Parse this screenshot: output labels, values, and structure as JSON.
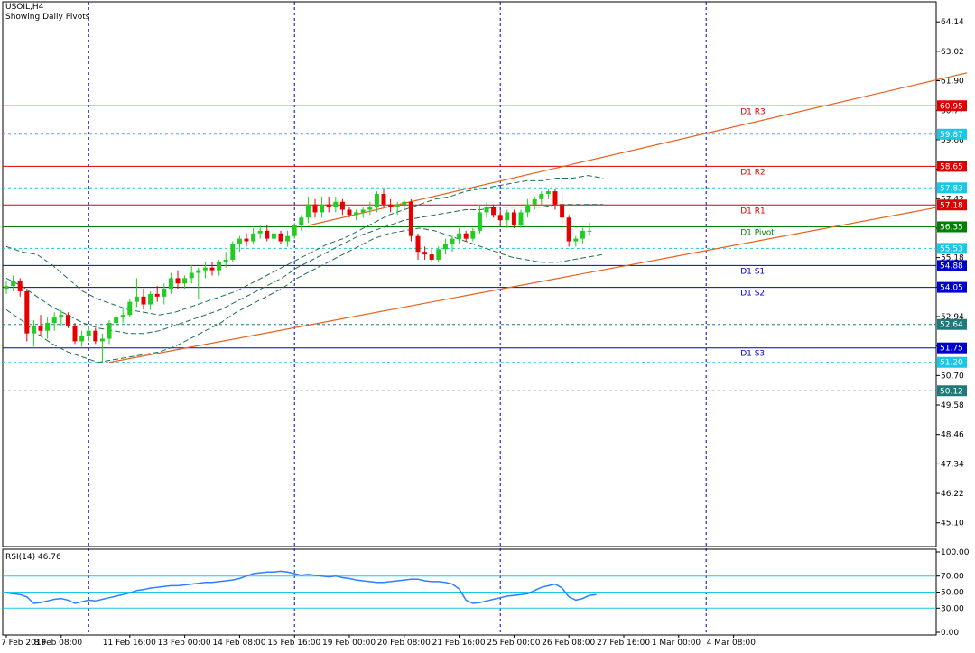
{
  "chart_data": {
    "type": "candlestick",
    "symbol_label": "USOIL,H4",
    "subtitle": "Showing Daily Pivots",
    "price_axis": {
      "min": 44.2,
      "max": 64.9,
      "ticks": [
        "64.14",
        "63.02",
        "61.90",
        "60.77",
        "59.66",
        "58.54",
        "57.42",
        "56.30",
        "55.18",
        "54.06",
        "52.94",
        "51.82",
        "50.70",
        "49.58",
        "48.46",
        "47.34",
        "46.22",
        "45.10"
      ]
    },
    "x_labels": [
      {
        "label": "7 Feb 2019",
        "index": 0
      },
      {
        "label": "8 Feb 08:00",
        "index": 8
      },
      {
        "label": "11 Feb 16:00",
        "index": 18
      },
      {
        "label": "13 Feb 00:00",
        "index": 26
      },
      {
        "label": "14 Feb 08:00",
        "index": 34
      },
      {
        "label": "15 Feb 16:00",
        "index": 42
      },
      {
        "label": "19 Feb 00:00",
        "index": 50
      },
      {
        "label": "20 Feb 08:00",
        "index": 58
      },
      {
        "label": "21 Feb 16:00",
        "index": 66
      },
      {
        "label": "25 Feb 00:00",
        "index": 74
      },
      {
        "label": "26 Feb 08:00",
        "index": 82
      },
      {
        "label": "27 Feb 16:00",
        "index": 90
      },
      {
        "label": "1 Mar 00:00",
        "index": 98
      },
      {
        "label": "4 Mar 08:00",
        "index": 106
      }
    ],
    "day_separators": [
      12,
      42,
      72,
      102
    ],
    "candles": [
      [
        54.0,
        54.3,
        53.8,
        54.1
      ],
      [
        54.1,
        54.5,
        53.9,
        54.3
      ],
      [
        54.3,
        54.4,
        53.7,
        53.9
      ],
      [
        53.9,
        54.0,
        52.0,
        52.3
      ],
      [
        52.3,
        52.8,
        51.8,
        52.6
      ],
      [
        52.6,
        53.0,
        52.2,
        52.4
      ],
      [
        52.4,
        52.9,
        52.1,
        52.7
      ],
      [
        52.7,
        53.1,
        52.4,
        52.9
      ],
      [
        52.9,
        53.2,
        52.6,
        53.0
      ],
      [
        53.0,
        53.1,
        52.5,
        52.6
      ],
      [
        52.6,
        52.7,
        51.9,
        52.0
      ],
      [
        52.0,
        52.4,
        51.8,
        52.2
      ],
      [
        52.2,
        52.6,
        52.0,
        52.4
      ],
      [
        52.4,
        52.5,
        51.9,
        52.0
      ],
      [
        52.0,
        52.3,
        51.2,
        52.1
      ],
      [
        52.1,
        52.8,
        51.9,
        52.7
      ],
      [
        52.7,
        53.0,
        52.5,
        52.9
      ],
      [
        52.9,
        53.3,
        52.7,
        53.0
      ],
      [
        53.0,
        53.6,
        52.9,
        53.5
      ],
      [
        53.5,
        54.4,
        53.3,
        53.7
      ],
      [
        53.7,
        54.0,
        53.2,
        53.4
      ],
      [
        53.4,
        53.9,
        53.2,
        53.8
      ],
      [
        53.8,
        54.1,
        53.5,
        53.7
      ],
      [
        53.7,
        54.2,
        53.4,
        54.0
      ],
      [
        54.0,
        54.6,
        53.8,
        54.4
      ],
      [
        54.4,
        54.7,
        54.0,
        54.2
      ],
      [
        54.2,
        54.5,
        54.0,
        54.4
      ],
      [
        54.4,
        54.9,
        54.2,
        54.6
      ],
      [
        54.6,
        54.8,
        53.6,
        54.7
      ],
      [
        54.7,
        55.0,
        54.4,
        54.8
      ],
      [
        54.8,
        55.0,
        54.5,
        54.7
      ],
      [
        54.7,
        55.1,
        54.5,
        55.0
      ],
      [
        55.0,
        55.4,
        54.8,
        55.1
      ],
      [
        55.1,
        55.8,
        55.0,
        55.7
      ],
      [
        55.7,
        56.0,
        55.4,
        55.9
      ],
      [
        55.9,
        56.1,
        55.6,
        55.8
      ],
      [
        55.8,
        56.3,
        55.7,
        56.1
      ],
      [
        56.1,
        56.4,
        55.9,
        56.2
      ],
      [
        56.2,
        56.4,
        55.8,
        55.9
      ],
      [
        55.9,
        56.2,
        55.7,
        56.1
      ],
      [
        56.1,
        56.2,
        55.7,
        55.8
      ],
      [
        55.8,
        56.2,
        55.6,
        56.0
      ],
      [
        56.0,
        56.5,
        55.9,
        56.4
      ],
      [
        56.4,
        56.8,
        56.2,
        56.7
      ],
      [
        56.7,
        57.5,
        56.5,
        57.2
      ],
      [
        57.2,
        57.4,
        56.7,
        56.9
      ],
      [
        56.9,
        57.5,
        56.7,
        57.2
      ],
      [
        57.2,
        57.5,
        56.9,
        57.1
      ],
      [
        57.1,
        57.5,
        56.9,
        57.3
      ],
      [
        57.3,
        57.4,
        56.8,
        57.0
      ],
      [
        57.0,
        57.1,
        56.7,
        56.8
      ],
      [
        56.8,
        57.0,
        56.6,
        56.9
      ],
      [
        56.9,
        57.1,
        56.7,
        57.0
      ],
      [
        57.0,
        57.3,
        56.8,
        57.1
      ],
      [
        57.1,
        57.7,
        56.9,
        57.6
      ],
      [
        57.6,
        57.8,
        57.1,
        57.2
      ],
      [
        57.2,
        57.4,
        56.9,
        57.1
      ],
      [
        57.1,
        57.3,
        56.8,
        57.2
      ],
      [
        57.2,
        57.4,
        57.0,
        57.3
      ],
      [
        57.3,
        57.4,
        55.8,
        56.0
      ],
      [
        56.0,
        56.1,
        55.1,
        55.4
      ],
      [
        55.4,
        55.6,
        55.1,
        55.3
      ],
      [
        55.3,
        55.5,
        55.0,
        55.1
      ],
      [
        55.1,
        55.6,
        55.0,
        55.5
      ],
      [
        55.5,
        55.9,
        55.3,
        55.7
      ],
      [
        55.7,
        56.0,
        55.4,
        55.9
      ],
      [
        55.9,
        56.3,
        55.7,
        56.1
      ],
      [
        56.1,
        56.2,
        55.8,
        55.9
      ],
      [
        55.9,
        56.3,
        55.8,
        56.2
      ],
      [
        56.2,
        57.2,
        56.1,
        56.9
      ],
      [
        56.9,
        57.3,
        56.7,
        57.1
      ],
      [
        57.1,
        57.2,
        56.7,
        56.8
      ],
      [
        56.8,
        57.0,
        56.4,
        56.6
      ],
      [
        56.6,
        57.0,
        56.3,
        56.9
      ],
      [
        56.9,
        57.0,
        56.3,
        56.4
      ],
      [
        56.4,
        57.0,
        56.3,
        56.9
      ],
      [
        56.9,
        57.4,
        56.7,
        57.2
      ],
      [
        57.2,
        57.5,
        57.0,
        57.4
      ],
      [
        57.4,
        57.7,
        57.2,
        57.6
      ],
      [
        57.6,
        57.8,
        57.4,
        57.7
      ],
      [
        57.7,
        57.8,
        57.0,
        57.2
      ],
      [
        57.2,
        57.6,
        56.4,
        56.7
      ],
      [
        56.7,
        56.8,
        55.6,
        55.8
      ],
      [
        55.8,
        56.0,
        55.6,
        55.9
      ],
      [
        55.9,
        56.3,
        55.7,
        56.2
      ],
      [
        56.2,
        56.5,
        56.0,
        56.2
      ]
    ],
    "pivot_lines": [
      {
        "name": "D1 R3",
        "value": 60.95,
        "value_label": "60.95",
        "color": "#dd0000",
        "style": "solid"
      },
      {
        "name": "",
        "value": 59.87,
        "value_label": "59.87",
        "color": "#19c8e6",
        "style": "dashed"
      },
      {
        "name": "D1 R2",
        "value": 58.65,
        "value_label": "58.65",
        "color": "#dd0000",
        "style": "solid"
      },
      {
        "name": "",
        "value": 57.83,
        "value_label": "57.83",
        "color": "#19c8e6",
        "style": "dashed"
      },
      {
        "name": "D1 R1",
        "value": 57.18,
        "value_label": "57.18",
        "color": "#dd0000",
        "style": "solid"
      },
      {
        "name": "D1 Pivot",
        "value": 56.35,
        "value_label": "56.35",
        "color": "#008000",
        "style": "solid"
      },
      {
        "name": "",
        "value": 55.53,
        "value_label": "55.53",
        "color": "#19c8e6",
        "style": "dashed"
      },
      {
        "name": "D1 S1",
        "value": 54.88,
        "value_label": "54.88",
        "color": "#0000cc",
        "style": "solid"
      },
      {
        "name": "D1 S2",
        "value": 54.05,
        "value_label": "54.05",
        "color": "#0000cc",
        "style": "solid"
      },
      {
        "name": "",
        "value": 52.64,
        "value_label": "52.64",
        "color": "#1e7a7a",
        "style": "dashed"
      },
      {
        "name": "D1 S3",
        "value": 51.75,
        "value_label": "51.75",
        "color": "#0000cc",
        "style": "solid"
      },
      {
        "name": "",
        "value": 51.2,
        "value_label": "51.20",
        "color": "#19c8e6",
        "style": "dashed"
      },
      {
        "name": "",
        "value": 50.12,
        "value_label": "50.12",
        "color": "#1e7a7a",
        "style": "dashed"
      }
    ],
    "channel": {
      "color": "#e8601c",
      "upper": [
        {
          "index": 44,
          "value": 56.4
        },
        {
          "index": 140,
          "value": 62.2
        }
      ],
      "lower": [
        {
          "index": 15,
          "value": 51.2
        },
        {
          "index": 140,
          "value": 57.3
        }
      ]
    },
    "envelope": {
      "color": "#1f6f4f",
      "upper": [
        55.6,
        55.4,
        55.3,
        54.9,
        54.4,
        53.9,
        53.6,
        53.4,
        53.2,
        53.1,
        53.0,
        53.1,
        53.3,
        53.5,
        53.7,
        53.9,
        54.2,
        54.5,
        54.8,
        55.1,
        55.4,
        55.7,
        55.9,
        56.2,
        56.5,
        56.8,
        57.0,
        57.2,
        57.4,
        57.5,
        57.7,
        57.8,
        57.9,
        58.0,
        58.1,
        58.1,
        58.2,
        58.2,
        58.3,
        58.2
      ],
      "middle": [
        54.4,
        54.1,
        53.7,
        53.3,
        53.0,
        52.7,
        52.5,
        52.4,
        52.3,
        52.3,
        52.4,
        52.6,
        52.8,
        53.0,
        53.2,
        53.5,
        53.8,
        54.1,
        54.4,
        54.8,
        55.1,
        55.4,
        55.7,
        56.0,
        56.2,
        56.4,
        56.6,
        56.7,
        56.8,
        56.9,
        57.0,
        57.0,
        57.1,
        57.1,
        57.1,
        57.1,
        57.2,
        57.2,
        57.2,
        57.2
      ],
      "lower": [
        53.2,
        52.8,
        52.3,
        51.9,
        51.6,
        51.4,
        51.2,
        51.3,
        51.4,
        51.5,
        51.6,
        51.8,
        52.1,
        52.4,
        52.7,
        53.1,
        53.4,
        53.7,
        54.0,
        54.4,
        54.7,
        55.0,
        55.3,
        55.6,
        55.9,
        56.1,
        56.2,
        56.3,
        56.2,
        56.0,
        55.8,
        55.6,
        55.4,
        55.2,
        55.1,
        55.0,
        55.0,
        55.1,
        55.2,
        55.3
      ]
    },
    "rsi": {
      "label": "RSI(14) 46.76",
      "ticks": [
        "100.00",
        "70.00",
        "50.00",
        "30.00",
        "0.00"
      ],
      "levels": [
        70,
        50,
        30
      ],
      "color": "#2f7fff",
      "values": [
        49,
        48,
        47,
        44,
        36,
        37,
        39,
        41,
        42,
        40,
        36,
        38,
        40,
        39,
        41,
        43,
        45,
        47,
        49,
        52,
        53,
        55,
        56,
        57,
        58,
        58,
        59,
        60,
        61,
        62,
        62,
        63,
        64,
        65,
        67,
        70,
        73,
        74,
        75,
        75,
        76,
        75,
        73,
        71,
        72,
        71,
        70,
        69,
        70,
        68,
        67,
        65,
        64,
        63,
        62,
        62,
        63,
        64,
        65,
        66,
        66,
        64,
        63,
        63,
        62,
        60,
        54,
        40,
        36,
        37,
        39,
        41,
        43,
        45,
        46,
        47,
        48,
        52,
        56,
        58,
        60,
        55,
        44,
        40,
        42,
        46,
        47
      ]
    }
  }
}
